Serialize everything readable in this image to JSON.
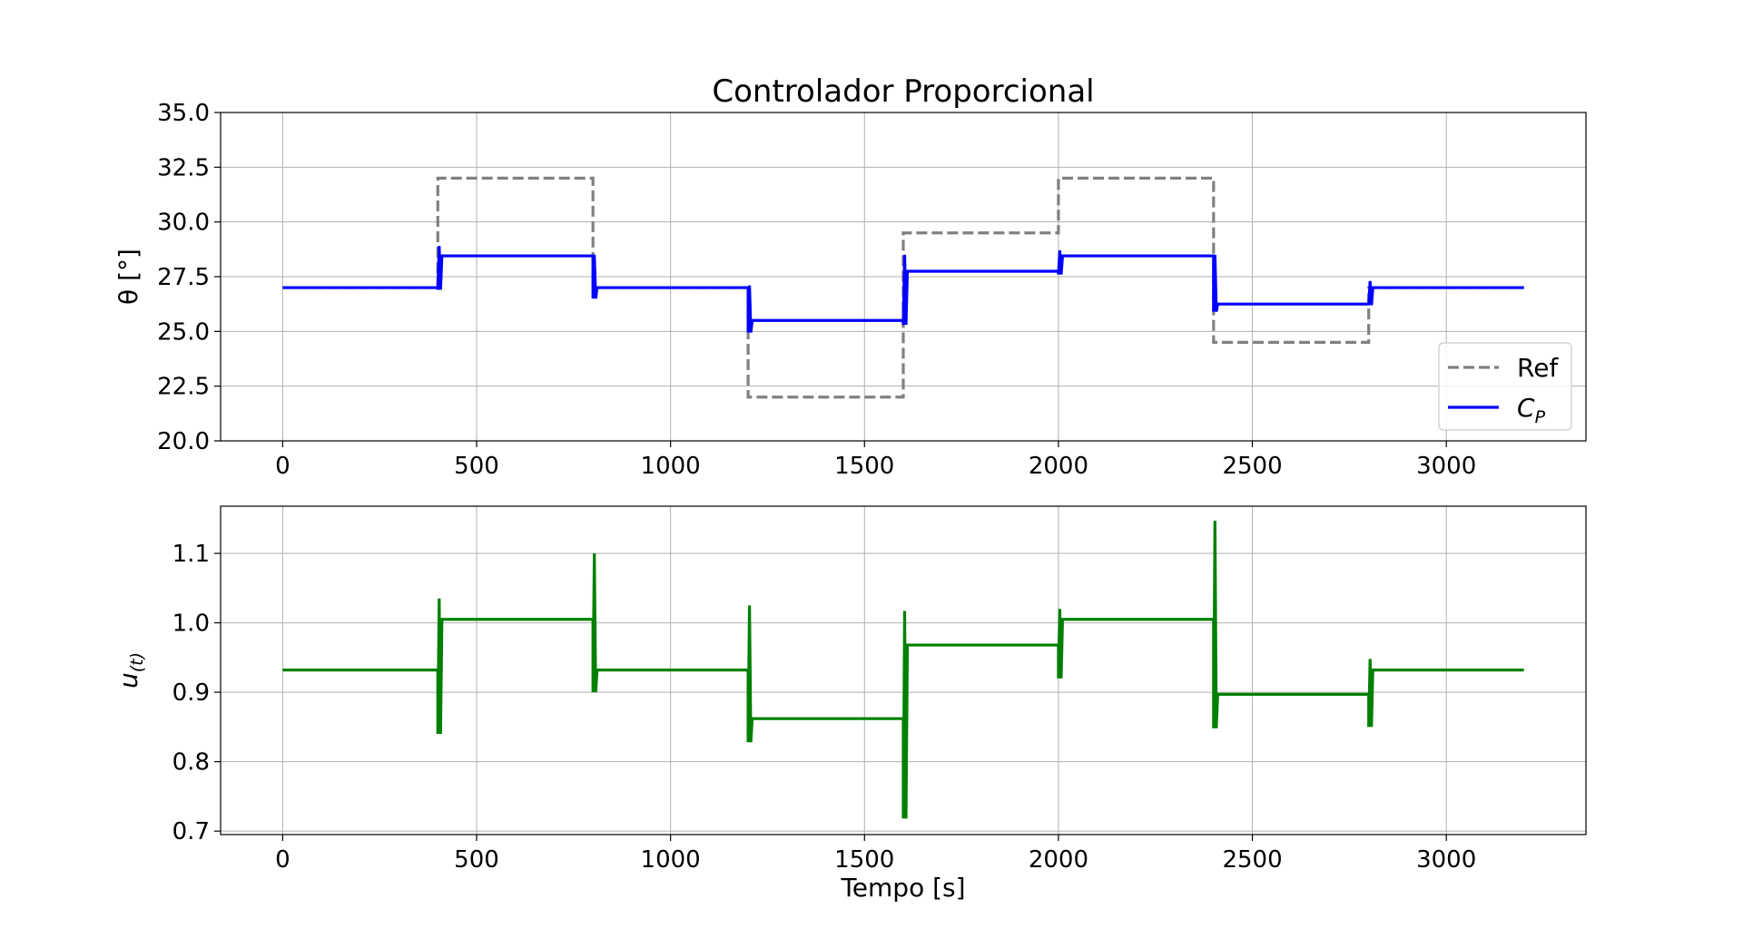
{
  "chart_data": [
    {
      "type": "line",
      "title": "Controlador Proporcional",
      "xlabel": "",
      "ylabel": "θ [°]",
      "xlim": [
        -160,
        3360
      ],
      "ylim": [
        20.0,
        35.0
      ],
      "xticks": [
        0,
        500,
        1000,
        1500,
        2000,
        2500,
        3000
      ],
      "yticks": [
        "20.0",
        "22.5",
        "25.0",
        "27.5",
        "30.0",
        "32.5",
        "35.0"
      ],
      "grid": true,
      "legend_position": "lower right",
      "legend": [
        {
          "label": "Ref",
          "style": "dashed",
          "color": "#808080"
        },
        {
          "label_main": "C",
          "label_sub": "P",
          "style": "solid",
          "color": "#0000ff"
        }
      ],
      "series": [
        {
          "name": "Ref",
          "color": "#808080",
          "style": "dashed",
          "segments": [
            {
              "t0": 0,
              "t1": 400,
              "value": 27.0
            },
            {
              "t0": 400,
              "t1": 800,
              "value": 32.0
            },
            {
              "t0": 800,
              "t1": 1200,
              "value": 27.0
            },
            {
              "t0": 1200,
              "t1": 1600,
              "value": 22.0
            },
            {
              "t0": 1600,
              "t1": 2000,
              "value": 29.5
            },
            {
              "t0": 2000,
              "t1": 2400,
              "value": 32.0
            },
            {
              "t0": 2400,
              "t1": 2800,
              "value": 24.5
            },
            {
              "t0": 2800,
              "t1": 3200,
              "value": 27.0
            }
          ]
        },
        {
          "name": "C_P",
          "color": "#0000ff",
          "style": "solid",
          "segments": [
            {
              "t0": 0,
              "t1": 400,
              "value": 27.0,
              "spike": null
            },
            {
              "t0": 400,
              "t1": 800,
              "value": 28.45,
              "spike": [
                28.9,
                26.9
              ]
            },
            {
              "t0": 800,
              "t1": 1200,
              "value": 27.0,
              "spike": [
                28.5,
                26.5
              ]
            },
            {
              "t0": 1200,
              "t1": 1600,
              "value": 25.5,
              "spike": [
                27.1,
                24.95
              ]
            },
            {
              "t0": 1600,
              "t1": 2000,
              "value": 27.75,
              "spike": [
                28.5,
                25.3
              ]
            },
            {
              "t0": 2000,
              "t1": 2400,
              "value": 28.45,
              "spike": [
                28.7,
                27.6
              ]
            },
            {
              "t0": 2400,
              "t1": 2800,
              "value": 26.25,
              "spike": [
                28.5,
                25.9
              ]
            },
            {
              "t0": 2800,
              "t1": 3200,
              "value": 27.0,
              "spike": [
                27.3,
                26.2
              ]
            }
          ]
        }
      ]
    },
    {
      "type": "line",
      "title": "",
      "xlabel": "Tempo [s]",
      "ylabel_main": "u",
      "ylabel_sub": "(t)",
      "xlim": [
        -160,
        3360
      ],
      "ylim": [
        0.695,
        1.168
      ],
      "xticks": [
        0,
        500,
        1000,
        1500,
        2000,
        2500,
        3000
      ],
      "yticks": [
        "0.7",
        "0.8",
        "0.9",
        "1.0",
        "1.1"
      ],
      "grid": true,
      "series": [
        {
          "name": "",
          "color": "#008000",
          "style": "solid",
          "segments": [
            {
              "t0": 0,
              "t1": 400,
              "value": 0.932,
              "spike": null
            },
            {
              "t0": 400,
              "t1": 800,
              "value": 1.005,
              "spike": [
                1.035,
                0.84
              ]
            },
            {
              "t0": 800,
              "t1": 1200,
              "value": 0.932,
              "spike": [
                1.1,
                0.9
              ]
            },
            {
              "t0": 1200,
              "t1": 1600,
              "value": 0.862,
              "spike": [
                1.025,
                0.828
              ]
            },
            {
              "t0": 1600,
              "t1": 2000,
              "value": 0.968,
              "spike": [
                1.017,
                0.718
              ]
            },
            {
              "t0": 2000,
              "t1": 2400,
              "value": 1.005,
              "spike": [
                1.02,
                0.92
              ]
            },
            {
              "t0": 2400,
              "t1": 2800,
              "value": 0.897,
              "spike": [
                1.147,
                0.848
              ]
            },
            {
              "t0": 2800,
              "t1": 3200,
              "value": 0.932,
              "spike": [
                0.948,
                0.85
              ]
            }
          ]
        }
      ]
    }
  ]
}
